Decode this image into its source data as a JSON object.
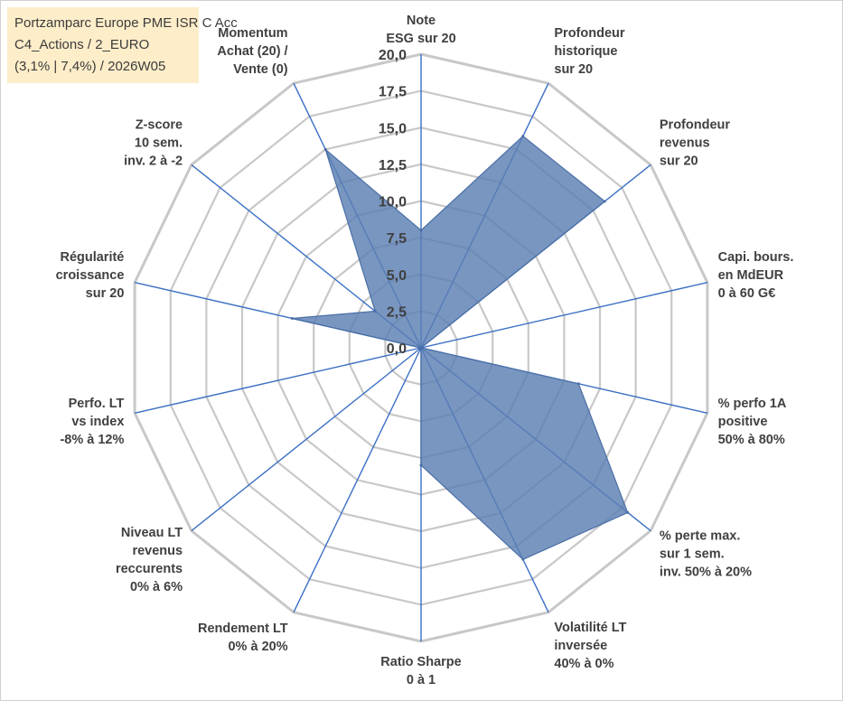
{
  "chart_data": {
    "type": "radar",
    "title_lines": [
      "Portzamparc Europe PME ISR C Acc",
      "C4_Actions / 2_EURO",
      "(3,1% | 7,4%) / 2026W05"
    ],
    "axis_labels": [
      [
        "Note",
        "ESG sur 20"
      ],
      [
        "Profondeur",
        "historique",
        "sur 20"
      ],
      [
        "Profondeur",
        "revenus",
        "sur 20"
      ],
      [
        "Capi. bours.",
        "en MdEUR",
        "0 à 60 G€"
      ],
      [
        "% perfo 1A",
        "positive",
        "50% à 80%"
      ],
      [
        "% perte max.",
        "sur 1 sem.",
        "inv. 50% à 20%"
      ],
      [
        "Volatilité LT",
        "inversée",
        "40% à 0%"
      ],
      [
        "Ratio Sharpe",
        "0 à 1"
      ],
      [
        "Rendement LT",
        "0% à 20%"
      ],
      [
        "Niveau LT",
        "revenus",
        "reccurents",
        "0% à 6%"
      ],
      [
        "Perfo. LT",
        "vs index",
        "-8% à 12%"
      ],
      [
        "Régularité",
        "croissance",
        "sur 20"
      ],
      [
        "Z-score",
        "10 sem.",
        "inv. 2 à -2"
      ],
      [
        "Momentum",
        "Achat (20) /",
        "Vente (0)"
      ]
    ],
    "values": [
      8,
      16,
      16,
      0,
      11,
      18,
      16,
      8,
      0,
      0,
      0,
      9,
      4,
      15
    ],
    "rmin": 0,
    "rmax": 20,
    "tick_step": 2.5,
    "tick_labels": [
      "0,0",
      "2,5",
      "5,0",
      "7,5",
      "10,0",
      "12,5",
      "15,0",
      "17,5",
      "20,0"
    ],
    "series_name": "Portzamparc Europe PME ISR C Acc",
    "fill_color": "#5B7FB3",
    "line_color": "#4A6FA5",
    "grid_color": "#C8C8C8",
    "spoke_color": "#3A6FC4"
  }
}
